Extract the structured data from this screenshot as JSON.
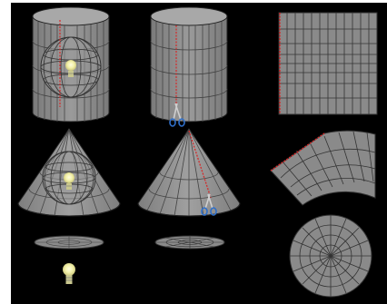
{
  "colors": {
    "background": "#000000",
    "frame": "#ffffff",
    "surface": "#8a8a8a",
    "surface_light": "#a5a5a5",
    "line": "#2b2b2b",
    "cut_line": "#d42a2a",
    "bulb_glow": "#f2f0a8",
    "scissors_handle": "#2f6fc9"
  },
  "panels": [
    {
      "name": "cylinder-with-globe",
      "icon": "lightbulb-icon"
    },
    {
      "name": "cylinder-cut",
      "icon": "scissors-icon"
    },
    {
      "name": "cylinder-unrolled-grid",
      "icon": "none"
    },
    {
      "name": "cone-with-globe",
      "icon": "lightbulb-icon"
    },
    {
      "name": "cone-cut",
      "icon": "scissors-icon"
    },
    {
      "name": "cone-unrolled-fan",
      "icon": "none"
    },
    {
      "name": "plane-with-globe-source",
      "icon": "lightbulb-icon"
    },
    {
      "name": "plane-tilted-grid",
      "icon": "none"
    },
    {
      "name": "plane-azimuthal-disc",
      "icon": "none"
    }
  ]
}
